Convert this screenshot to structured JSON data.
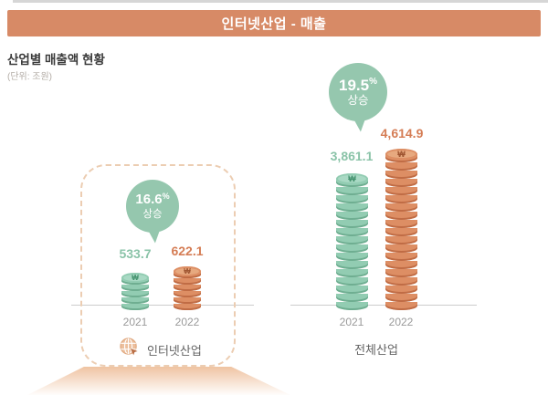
{
  "page": {
    "background": "#ffffff",
    "top_strip_color": "#d6d6d6"
  },
  "banner": {
    "title": "인터넷산업 - 매출",
    "bg_color": "#d78a66",
    "text_color": "#ffffff"
  },
  "header": {
    "title": "산업별 매출액 현황",
    "unit": "(단위: 조원)"
  },
  "palette": {
    "green_body": "#92ccb2",
    "green_seam": "#6fae91",
    "green_face": "#a9d9c4",
    "green_symbol": "#44926e",
    "orange_body": "#dd8e64",
    "orange_seam": "#c06c45",
    "orange_face": "#e7a97f",
    "orange_symbol": "#9e5430",
    "bubble_green": "#95c7ae",
    "value_green": "#8ac3a8",
    "value_orange": "#d57d55",
    "year_gray": "#9a9a9a",
    "label_gray": "#636363",
    "baseline_gray": "#cccccc",
    "dashed_border": "#eccdb2",
    "beam_top": "#efc3a2"
  },
  "chart_data": {
    "type": "bar",
    "title": "산업별 매출액 현황",
    "unit": "조원",
    "unit_label": "(단위: 조원)",
    "currency_symbol": "₩",
    "grid": false,
    "legend_position": "none",
    "series_colors": {
      "2021": "#92ccb2",
      "2022": "#dd8e64"
    },
    "groups": [
      {
        "name": "인터넷산업",
        "categories": [
          "2021",
          "2022"
        ],
        "values": [
          533.7,
          622.1
        ],
        "value_labels": [
          "533.7",
          "622.1"
        ],
        "change_value": "16.6",
        "change_unit": "%",
        "change_word": "상승",
        "highlighted": true
      },
      {
        "name": "전체산업",
        "categories": [
          "2021",
          "2022"
        ],
        "values": [
          3861.1,
          4614.9
        ],
        "value_labels": [
          "3,861.1",
          "4,614.9"
        ],
        "change_value": "19.5",
        "change_unit": "%",
        "change_word": "상승",
        "highlighted": false
      }
    ]
  }
}
